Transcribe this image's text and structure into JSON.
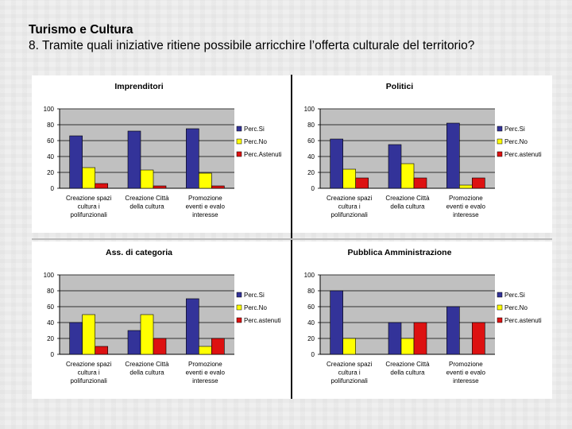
{
  "header": {
    "title": "Turismo e Cultura",
    "question": "8. Tramite quali iniziative ritiene possibile arricchire l’offerta culturale del territorio?"
  },
  "colors": {
    "si": "#333399",
    "no": "#ffff00",
    "astenuti": "#dd1111",
    "plot_bg": "#c0c0c0"
  },
  "chart_data": [
    {
      "type": "bar",
      "title": "Imprenditori",
      "categories": [
        [
          "Creazione spazi",
          "cultura i",
          "polifunzionali"
        ],
        [
          "Creazione Città",
          "della cultura"
        ],
        [
          "Promozione",
          "eventi e evalo",
          "interesse"
        ]
      ],
      "series": [
        {
          "name": "Perc.Si",
          "values": [
            66,
            72,
            75
          ]
        },
        {
          "name": "Perc.No",
          "values": [
            26,
            23,
            19
          ]
        },
        {
          "name": "Perc.Astenuti",
          "values": [
            6,
            3,
            3
          ]
        }
      ],
      "ylim": [
        0,
        100
      ],
      "yticks": [
        "0",
        "20",
        "40",
        "60",
        "80",
        "100"
      ],
      "legend": "right",
      "grid": true
    },
    {
      "type": "bar",
      "title": "Politici",
      "categories": [
        [
          "Creazione spazi",
          "cultura i",
          "polifunzionali"
        ],
        [
          "Creazione Città",
          "della cultura"
        ],
        [
          "Promozione",
          "eventi e evalo",
          "interesse"
        ]
      ],
      "series": [
        {
          "name": "Perc.Si",
          "values": [
            62,
            55,
            82
          ]
        },
        {
          "name": "Perc.No",
          "values": [
            24,
            31,
            4
          ]
        },
        {
          "name": "Perc.astenuti",
          "values": [
            13,
            13,
            13
          ]
        }
      ],
      "ylim": [
        0,
        100
      ],
      "yticks": [
        "0",
        "20",
        "40",
        "60",
        "80",
        "100"
      ],
      "legend": "right",
      "grid": true
    },
    {
      "type": "bar",
      "title": "Ass. di categoria",
      "categories": [
        [
          "Creazione spazi",
          "cultura i",
          "polifunzionali"
        ],
        [
          "Creazione Città",
          "della cultura"
        ],
        [
          "Promozione",
          "eventi e evalo",
          "interesse"
        ]
      ],
      "series": [
        {
          "name": "Perc.Si",
          "values": [
            40,
            30,
            70
          ]
        },
        {
          "name": "Perc.No",
          "values": [
            50,
            50,
            10
          ]
        },
        {
          "name": "Perc.astenuti",
          "values": [
            10,
            20,
            20
          ]
        }
      ],
      "ylim": [
        0,
        100
      ],
      "yticks": [
        "0",
        "20",
        "40",
        "60",
        "80",
        "100"
      ],
      "legend": "right",
      "grid": true
    },
    {
      "type": "bar",
      "title": "Pubblica Amministrazione",
      "categories": [
        [
          "Creazione spazi",
          "cultura i",
          "polifunzionali"
        ],
        [
          "Creazione Città",
          "della cultura"
        ],
        [
          "Promozione",
          "eventi e evalo",
          "interesse"
        ]
      ],
      "series": [
        {
          "name": "Perc.Si",
          "values": [
            80,
            40,
            60
          ]
        },
        {
          "name": "Perc.No",
          "values": [
            20,
            20,
            0
          ]
        },
        {
          "name": "Perc.astenuti",
          "values": [
            0,
            40,
            40
          ]
        }
      ],
      "ylim": [
        0,
        100
      ],
      "yticks": [
        "0",
        "20",
        "40",
        "60",
        "80",
        "100"
      ],
      "legend": "right",
      "grid": true
    }
  ]
}
